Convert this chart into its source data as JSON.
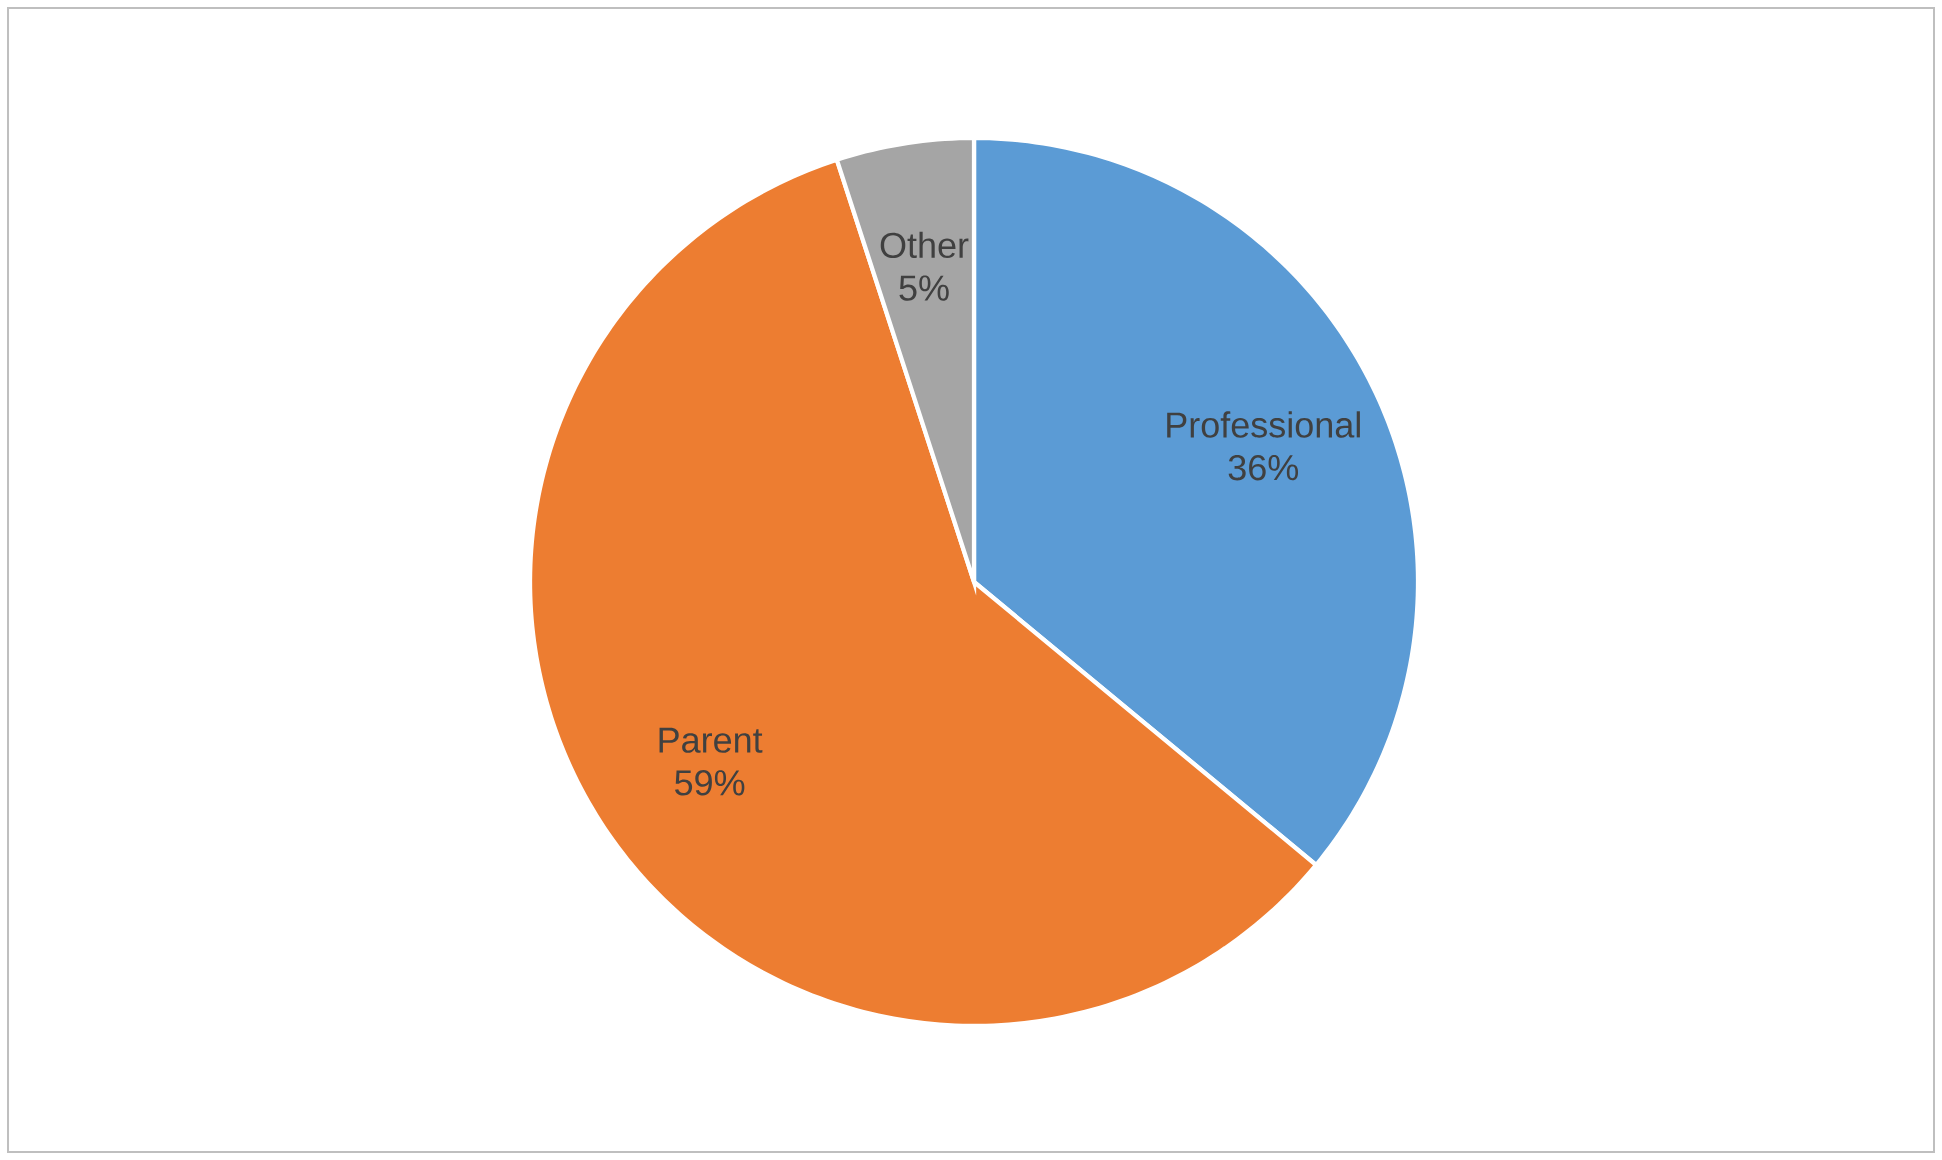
{
  "chart_data": {
    "type": "pie",
    "categories": [
      "Professional",
      "Parent",
      "Other"
    ],
    "values": [
      36,
      59,
      5
    ],
    "value_labels": [
      "36%",
      "59%",
      "5%"
    ],
    "colors": [
      "#5b9bd5",
      "#ed7d31",
      "#a5a5a5"
    ]
  }
}
